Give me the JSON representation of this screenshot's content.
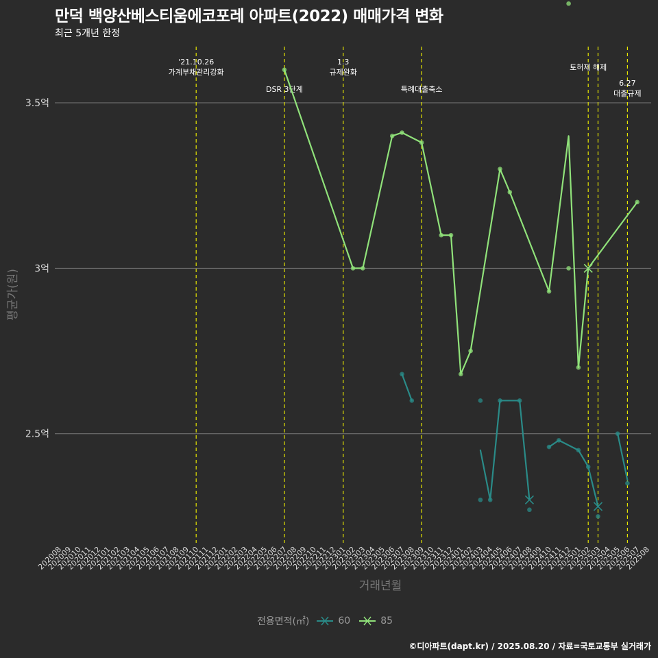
{
  "title": "만덕 백양산베스티움에코포레 아파트(2022) 매매가격 변화",
  "subtitle": "최근 5개년 한정",
  "caption": "©디아파트(dapt.kr) / 2025.08.20 / 자료=국토교통부 실거래가",
  "legend": {
    "title": "전용면적(㎡)",
    "items": [
      {
        "label": "60",
        "color": "#2a8b88"
      },
      {
        "label": "85",
        "color": "#90e27a"
      }
    ]
  },
  "chart_data": {
    "type": "line",
    "xlabel": "거래년월",
    "ylabel": "평균가(원)",
    "ylim": [
      2.17,
      3.67
    ],
    "yticks": [
      {
        "value": 2.5,
        "label": "2.5억"
      },
      {
        "value": 3.0,
        "label": "3억"
      },
      {
        "value": 3.5,
        "label": "3.5억"
      }
    ],
    "categories": [
      "202008",
      "202009",
      "202010",
      "202011",
      "202012",
      "202101",
      "202102",
      "202103",
      "202104",
      "202105",
      "202106",
      "202107",
      "202108",
      "202109",
      "202110",
      "202111",
      "202112",
      "202201",
      "202202",
      "202203",
      "202204",
      "202205",
      "202206",
      "202207",
      "202208",
      "202209",
      "202210",
      "202211",
      "202212",
      "202301",
      "202302",
      "202303",
      "202304",
      "202305",
      "202306",
      "202307",
      "202308",
      "202309",
      "202310",
      "202311",
      "202312",
      "202401",
      "202402",
      "202403",
      "202404",
      "202405",
      "202406",
      "202407",
      "202408",
      "202409",
      "202410",
      "202411",
      "202412",
      "202501",
      "202502",
      "202503",
      "202504",
      "202505",
      "202506",
      "202507",
      "202508"
    ],
    "grid": true,
    "events": [
      {
        "x": "202110",
        "label": "'21.10.26\n가계부채관리강화",
        "row": 1
      },
      {
        "x": "202207",
        "label": "DSR 3단계",
        "row": 2
      },
      {
        "x": "202301",
        "label": "1.3\n규제완화",
        "row": 1
      },
      {
        "x": "202309",
        "label": "특례대출축소",
        "row": 2
      },
      {
        "x": "202502",
        "label": "토허제 해제",
        "row": 1
      },
      {
        "x": "202503",
        "label": "",
        "row": 1
      },
      {
        "x": "202506",
        "label": "6.27\n대출규제",
        "row": 3
      }
    ],
    "series": [
      {
        "name": "60",
        "color": "#2a8b88",
        "line": [
          [
            [
              "202307",
              2.68
            ],
            [
              "202308",
              2.6
            ]
          ],
          [
            [
              "202403",
              2.45
            ],
            [
              "202404",
              2.3
            ],
            [
              "202405",
              2.6
            ],
            [
              "202406",
              2.6
            ],
            [
              "202407",
              2.6
            ],
            [
              "202408",
              2.3
            ]
          ],
          [
            [
              "202410",
              2.46
            ],
            [
              "202411",
              2.48
            ],
            [
              "202501",
              2.45
            ],
            [
              "202502",
              2.4
            ],
            [
              "202503",
              2.28
            ]
          ],
          [
            [
              "202505",
              2.5
            ],
            [
              "202506",
              2.36
            ]
          ]
        ],
        "points": [
          [
            "202307",
            2.68
          ],
          [
            "202308",
            2.6
          ],
          [
            "202403",
            2.6
          ],
          [
            "202403",
            2.3
          ],
          [
            "202404",
            2.3
          ],
          [
            "202405",
            2.6
          ],
          [
            "202407",
            2.6
          ],
          [
            "202408",
            2.27
          ],
          [
            "202410",
            2.46
          ],
          [
            "202411",
            2.48
          ],
          [
            "202501",
            2.45
          ],
          [
            "202502",
            2.4
          ],
          [
            "202503",
            2.25
          ],
          [
            "202505",
            2.5
          ],
          [
            "202506",
            2.35
          ]
        ],
        "x_marks": [
          [
            "202408",
            2.3
          ],
          [
            "202503",
            2.28
          ]
        ]
      },
      {
        "name": "85",
        "color": "#90e27a",
        "line": [
          [
            [
              "202207",
              3.6
            ],
            [
              "202302",
              3.0
            ],
            [
              "202303",
              3.0
            ],
            [
              "202306",
              3.4
            ],
            [
              "202307",
              3.41
            ],
            [
              "202309",
              3.38
            ],
            [
              "202311",
              3.1
            ],
            [
              "202312",
              3.1
            ],
            [
              "202401",
              2.68
            ],
            [
              "202402",
              2.75
            ],
            [
              "202405",
              3.3
            ],
            [
              "202406",
              3.23
            ],
            [
              "202410",
              2.93
            ],
            [
              "202412",
              3.4
            ],
            [
              "202501",
              2.7
            ],
            [
              "202502",
              3.0
            ],
            [
              "202507",
              3.2
            ]
          ]
        ],
        "points": [
          [
            "202207",
            3.6
          ],
          [
            "202302",
            3.0
          ],
          [
            "202303",
            3.0
          ],
          [
            "202306",
            3.4
          ],
          [
            "202307",
            3.41
          ],
          [
            "202309",
            3.38
          ],
          [
            "202311",
            3.1
          ],
          [
            "202312",
            3.1
          ],
          [
            "202401",
            2.68
          ],
          [
            "202402",
            2.75
          ],
          [
            "202405",
            3.3
          ],
          [
            "202406",
            3.23
          ],
          [
            "202410",
            2.93
          ],
          [
            "202412",
            3.8
          ],
          [
            "202412",
            3.0
          ],
          [
            "202501",
            2.7
          ],
          [
            "202507",
            3.2
          ]
        ],
        "x_marks": [
          [
            "202502",
            3.0
          ]
        ]
      }
    ]
  }
}
